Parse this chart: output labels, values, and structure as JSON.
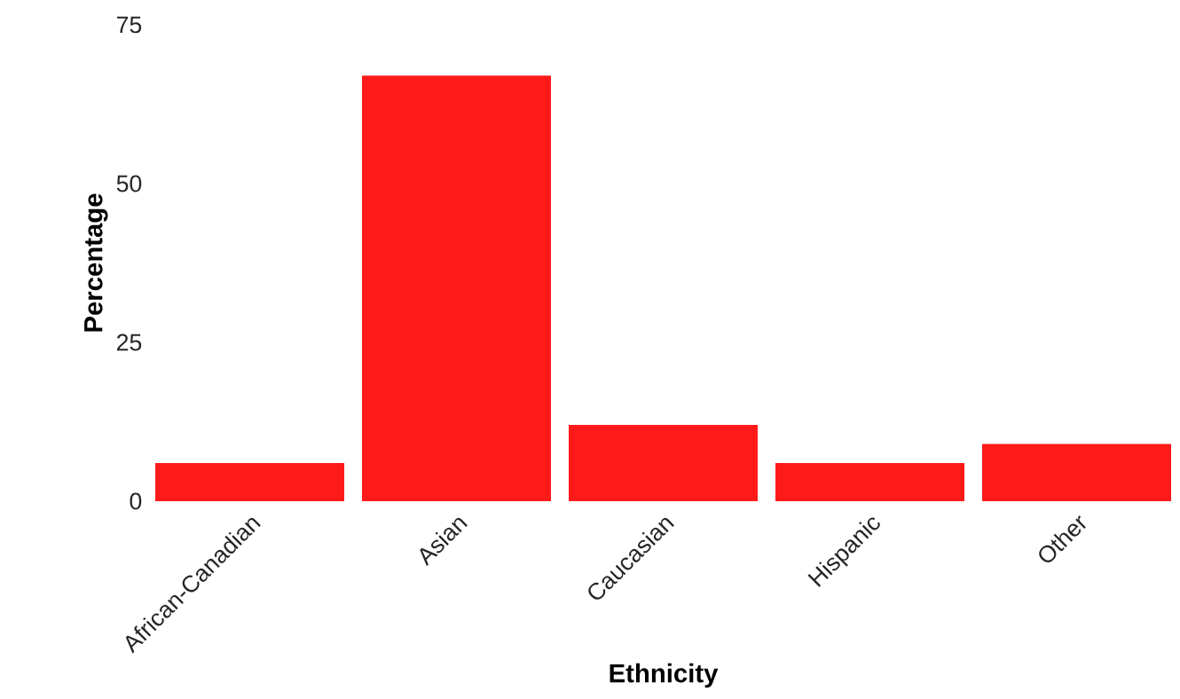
{
  "chart_data": {
    "type": "bar",
    "xlabel": "Ethnicity",
    "ylabel": "Percentage",
    "categories": [
      "African-Canadian",
      "Asian",
      "Caucasian",
      "Hispanic",
      "Other"
    ],
    "values": [
      6,
      67,
      12,
      6,
      9
    ],
    "color": "#ff1a1a",
    "ylim": [
      0,
      75
    ],
    "yticks": [
      0,
      25,
      50,
      75
    ]
  }
}
